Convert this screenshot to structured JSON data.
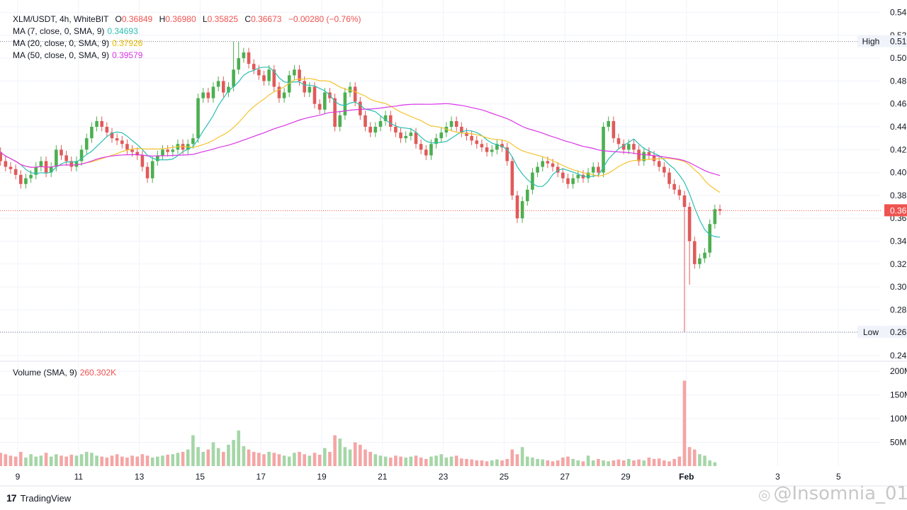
{
  "legend": {
    "symbol": "XLM/USDT, 4h, WhiteBIT",
    "o_label": "O",
    "o_value": "0.36849",
    "h_label": "H",
    "h_value": "0.36980",
    "l_label": "L",
    "l_value": "0.35825",
    "c_label": "C",
    "c_value": "0.36673",
    "change": "−0.00280 (−0.76%)",
    "ma7_label": "MA (7, close, 0, SMA, 9)",
    "ma7_value": "0.34693",
    "ma20_label": "MA (20, close, 0, SMA, 9)",
    "ma20_value": "0.37926",
    "ma50_label": "MA (50, close, 0, SMA, 9)",
    "ma50_value": "0.39579",
    "volume_label": "Volume (SMA, 9)",
    "volume_value": "260.302K"
  },
  "badges": {
    "high_label": "High",
    "high_value": "0.51",
    "low_label": "Low",
    "low_value": "0.26",
    "last_value": "0.36"
  },
  "footer": {
    "brand": "TradingView",
    "watermark": "@Insomnia_01"
  },
  "colors": {
    "up": "#26a69a",
    "down": "#ef5350",
    "up_candle": "#4caf50",
    "down_candle": "#e05a5a",
    "ma7": "#2bbfb3",
    "ma20": "#f4c430",
    "ma50": "#d936e6",
    "vol_up": "#a5d6a7",
    "vol_down": "#f5a5a5",
    "grid": "#f0f3fa"
  },
  "chart_data": [
    {
      "type": "candlestick",
      "symbol": "XLM/USDT, 4h, WhiteBIT",
      "y_ticks": [
        "0.24",
        "0.26",
        "0.28",
        "0.30",
        "0.32",
        "0.34",
        "0.36",
        "0.38",
        "0.40",
        "0.42",
        "0.44",
        "0.46",
        "0.48",
        "0.50",
        "0.52",
        "0.54"
      ],
      "ylim": [
        0.235,
        0.545
      ],
      "x_ticks": [
        "9",
        "11",
        "13",
        "15",
        "17",
        "19",
        "21",
        "23",
        "25",
        "27",
        "29",
        "Feb",
        "3",
        "5"
      ],
      "x_tick_day_index": [
        0,
        2,
        4,
        6,
        8,
        10,
        12,
        14,
        16,
        18,
        20,
        22,
        25,
        27
      ],
      "candles_per_day": 6,
      "first_candle_day_offset": -0.9,
      "high_line": 0.5145,
      "low_line": 0.2605,
      "last_price_line": 0.3667,
      "closes": [
        0.425,
        0.418,
        0.41,
        0.405,
        0.403,
        0.398,
        0.39,
        0.395,
        0.398,
        0.405,
        0.41,
        0.4,
        0.405,
        0.42,
        0.415,
        0.41,
        0.405,
        0.41,
        0.42,
        0.43,
        0.44,
        0.445,
        0.44,
        0.435,
        0.43,
        0.428,
        0.425,
        0.42,
        0.418,
        0.415,
        0.405,
        0.395,
        0.41,
        0.415,
        0.42,
        0.418,
        0.42,
        0.425,
        0.42,
        0.425,
        0.43,
        0.465,
        0.47,
        0.465,
        0.475,
        0.48,
        0.47,
        0.475,
        0.49,
        0.5,
        0.505,
        0.495,
        0.49,
        0.485,
        0.48,
        0.49,
        0.475,
        0.465,
        0.47,
        0.485,
        0.49,
        0.48,
        0.47,
        0.475,
        0.46,
        0.455,
        0.47,
        0.465,
        0.44,
        0.45,
        0.47,
        0.475,
        0.462,
        0.45,
        0.44,
        0.435,
        0.44,
        0.445,
        0.45,
        0.44,
        0.435,
        0.43,
        0.432,
        0.435,
        0.425,
        0.42,
        0.415,
        0.425,
        0.43,
        0.435,
        0.44,
        0.445,
        0.44,
        0.435,
        0.432,
        0.428,
        0.425,
        0.422,
        0.418,
        0.42,
        0.425,
        0.422,
        0.41,
        0.38,
        0.36,
        0.375,
        0.385,
        0.4,
        0.405,
        0.41,
        0.408,
        0.405,
        0.4,
        0.395,
        0.39,
        0.395,
        0.398,
        0.395,
        0.4,
        0.405,
        0.4,
        0.44,
        0.445,
        0.43,
        0.425,
        0.42,
        0.425,
        0.42,
        0.41,
        0.418,
        0.415,
        0.41,
        0.405,
        0.4,
        0.39,
        0.385,
        0.38,
        0.37,
        0.34,
        0.32,
        0.325,
        0.33,
        0.355,
        0.368,
        0.3667
      ],
      "volumes": [
        45,
        30,
        28,
        25,
        22,
        20,
        30,
        18,
        25,
        20,
        22,
        28,
        20,
        25,
        22,
        20,
        24,
        22,
        25,
        30,
        28,
        22,
        20,
        18,
        22,
        25,
        20,
        18,
        22,
        20,
        25,
        22,
        18,
        20,
        22,
        24,
        25,
        28,
        30,
        35,
        65,
        40,
        30,
        35,
        50,
        38,
        30,
        45,
        55,
        75,
        42,
        35,
        30,
        28,
        25,
        30,
        28,
        25,
        22,
        20,
        28,
        30,
        25,
        22,
        28,
        24,
        38,
        30,
        65,
        58,
        40,
        35,
        50,
        45,
        35,
        30,
        25,
        22,
        20,
        18,
        22,
        20,
        18,
        20,
        22,
        18,
        15,
        20,
        22,
        25,
        18,
        20,
        22,
        16,
        15,
        14,
        12,
        12,
        10,
        12,
        14,
        12,
        15,
        35,
        25,
        40,
        20,
        18,
        15,
        14,
        12,
        10,
        12,
        18,
        20,
        15,
        12,
        10,
        22,
        12,
        15,
        12,
        10,
        12,
        14,
        12,
        15,
        12,
        14,
        12,
        18,
        15,
        16,
        12,
        10,
        15,
        20,
        180,
        40,
        35,
        25,
        22,
        12,
        8
      ],
      "ma7_last": 0.34693,
      "ma20_last": 0.37926,
      "ma50_last": 0.39579,
      "ylabel": "",
      "xlabel": ""
    },
    {
      "type": "bar",
      "title": "Volume (SMA, 9)",
      "y_ticks": [
        "50M",
        "100M",
        "150M",
        "200M"
      ],
      "ylim": [
        0,
        200
      ]
    }
  ]
}
